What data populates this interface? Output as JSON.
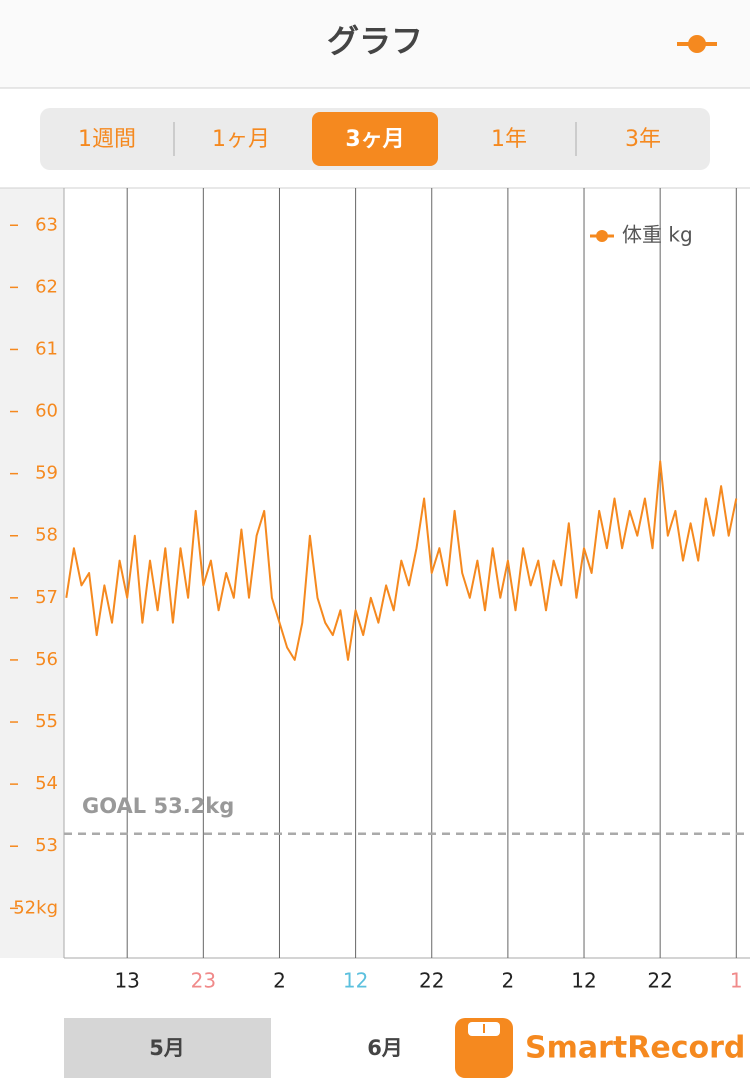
{
  "header": {
    "title": "グラフ"
  },
  "segments": {
    "labels": [
      "1週間",
      "1ヶ月",
      "3ヶ月",
      "1年",
      "3年"
    ],
    "selected": 2
  },
  "chart_data": {
    "type": "line",
    "x": [
      5,
      6,
      7,
      8,
      9,
      10,
      11,
      12,
      13,
      14,
      15,
      16,
      17,
      18,
      19,
      20,
      21,
      22,
      23,
      24,
      25,
      26,
      27,
      28,
      29,
      30,
      31,
      32,
      33,
      34,
      35,
      36,
      37,
      38,
      39,
      40,
      41,
      42,
      43,
      44,
      45,
      46,
      47,
      48,
      49,
      50,
      51,
      52,
      53,
      54,
      55,
      56,
      57,
      58,
      59,
      60,
      61,
      62,
      63,
      64,
      65,
      66,
      67,
      68,
      69,
      70,
      71,
      72,
      73,
      74,
      75,
      76,
      77,
      78,
      79,
      80,
      81,
      82,
      83,
      84,
      85,
      86,
      87,
      88,
      89,
      90,
      91,
      92,
      93
    ],
    "series": [
      {
        "name": "体重 kg",
        "color": "#f5891f",
        "values": [
          57.0,
          57.8,
          57.2,
          57.4,
          56.4,
          57.2,
          56.6,
          57.6,
          57.0,
          58.0,
          56.6,
          57.6,
          56.8,
          57.8,
          56.6,
          57.8,
          57.0,
          58.4,
          57.2,
          57.6,
          56.8,
          57.4,
          57.0,
          58.1,
          57.0,
          58.0,
          58.4,
          57.0,
          56.6,
          56.2,
          56.0,
          56.6,
          58.0,
          57.0,
          56.6,
          56.4,
          56.8,
          56.0,
          56.8,
          56.4,
          57.0,
          56.6,
          57.2,
          56.8,
          57.6,
          57.2,
          57.8,
          58.6,
          57.4,
          57.8,
          57.2,
          58.4,
          57.4,
          57.0,
          57.6,
          56.8,
          57.8,
          57.0,
          57.6,
          56.8,
          57.8,
          57.2,
          57.6,
          56.8,
          57.6,
          57.2,
          58.2,
          57.0,
          57.8,
          57.4,
          58.4,
          57.8,
          58.6,
          57.8,
          58.4,
          58.0,
          58.6,
          57.8,
          59.2,
          58.0,
          58.4,
          57.6,
          58.2,
          57.6,
          58.6,
          58.0,
          58.8,
          58.0,
          58.6
        ]
      }
    ],
    "xlim": [
      4.7,
      94.8
    ],
    "xticks": [
      {
        "value": 13,
        "label": "13"
      },
      {
        "value": 23,
        "label": "23",
        "color": "#f08a8a"
      },
      {
        "value": 33,
        "label": "2"
      },
      {
        "value": 43,
        "label": "12",
        "color": "#5bc0de"
      },
      {
        "value": 53,
        "label": "22"
      },
      {
        "value": 63,
        "label": "2"
      },
      {
        "value": 73,
        "label": "12"
      },
      {
        "value": 83,
        "label": "22"
      },
      {
        "value": 93,
        "label": "1",
        "color": "#f08a8a"
      }
    ],
    "ylim": [
      51.2,
      63.6
    ],
    "yticks": [
      {
        "value": 52,
        "label": "52kg"
      },
      53,
      54,
      55,
      56,
      57,
      58,
      59,
      60,
      61,
      62,
      63
    ],
    "goal": {
      "value": 53.2,
      "label": "GOAL 53.2kg"
    },
    "grid": true
  },
  "months": {
    "labels": [
      "5月",
      "6月"
    ],
    "selected": 0
  },
  "brand": "SmartRecord"
}
